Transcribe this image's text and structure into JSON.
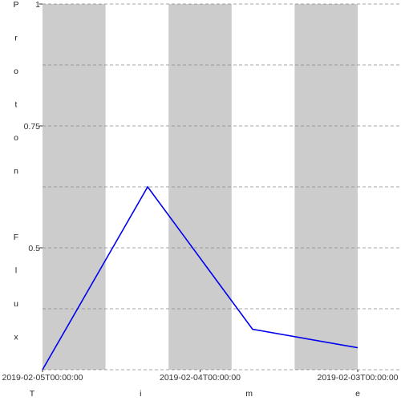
{
  "chart_data": {
    "type": "line",
    "title": "",
    "xlabel": "Time",
    "ylabel": "Proton Flux",
    "x_ticks": [
      {
        "label": "2019-02-05T00:00:00",
        "x": 0
      },
      {
        "label": "2019-02-04T00:00:00",
        "x": 1
      },
      {
        "label": "2019-02-03T00:00:00",
        "x": 2
      }
    ],
    "y_ticks": [
      {
        "label": "0.5",
        "value": 0.5
      },
      {
        "label": "0.75",
        "value": 0.75
      },
      {
        "label": "1",
        "value": 1
      }
    ],
    "xlim": [
      0,
      2
    ],
    "ylim": [
      0.25,
      1
    ],
    "grid": true,
    "legend": "none",
    "background_bands": 5,
    "series": [
      {
        "color": "#0000ee",
        "points": [
          {
            "x": 0,
            "y": 0.25
          },
          {
            "x": 0.667,
            "y": 0.625
          },
          {
            "x": 1.333,
            "y": 0.333
          },
          {
            "x": 2,
            "y": 0.295
          }
        ]
      }
    ]
  }
}
